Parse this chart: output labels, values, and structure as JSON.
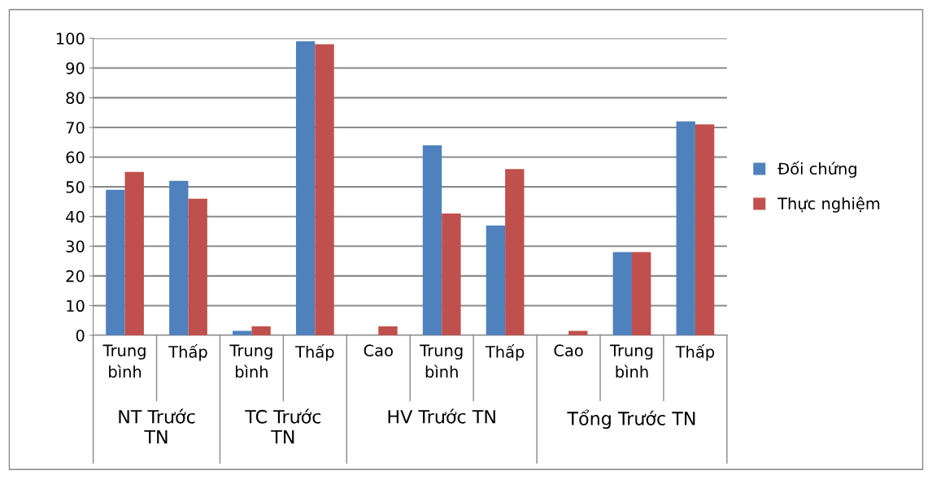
{
  "chart_data": {
    "type": "bar",
    "categories": [
      "Trung bình",
      "Thấp",
      "Trung bình",
      "Thấp",
      "Cao",
      "Trung bình",
      "Thấp",
      "Cao",
      "Trung bình",
      "Thấp"
    ],
    "annotations": [
      "NT Trước TN",
      "TC Trước TN",
      "HV Trước TN",
      "Tổng Trước TN"
    ],
    "series": [
      {
        "name": "Đối chứng",
        "color": "#4f81bd",
        "values": [
          49,
          52,
          1.5,
          99,
          0,
          64,
          37,
          0,
          28,
          72
        ]
      },
      {
        "name": "Thực nghiệm",
        "color": "#c0504d",
        "values": [
          55,
          46,
          3,
          98,
          3,
          41,
          56,
          1.5,
          28,
          71
        ]
      }
    ],
    "ylim": [
      0,
      100
    ],
    "yticks": [
      0,
      10,
      20,
      30,
      40,
      50,
      60,
      70,
      80,
      90,
      100
    ],
    "grid": "y",
    "legend": "right"
  }
}
